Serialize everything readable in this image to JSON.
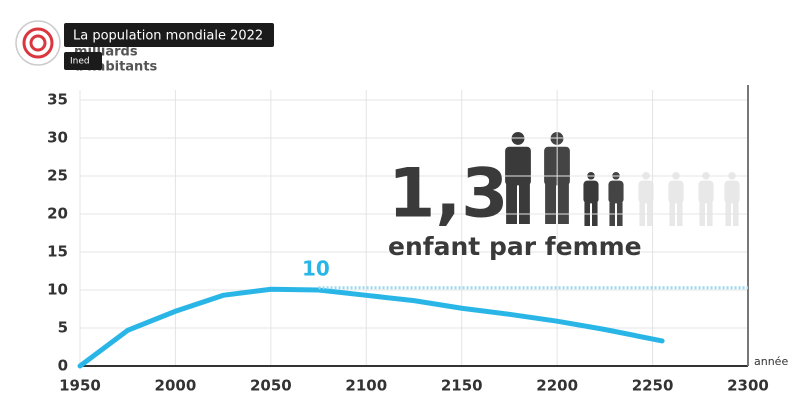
{
  "overlay": {
    "title": "La population mondiale 2022",
    "channel": "Ined"
  },
  "chart_data": {
    "type": "line",
    "ylabel": [
      "milliards",
      "d'habitants"
    ],
    "xlabel": "année",
    "big_text": "1,3",
    "sub_text": "enfant par femme",
    "annotation": "10",
    "xlim": [
      1950,
      2300
    ],
    "ylim": [
      0,
      35
    ],
    "xticks": [
      1950,
      2000,
      2050,
      2100,
      2150,
      2200,
      2250,
      2300
    ],
    "yticks": [
      0,
      5,
      10,
      15,
      20,
      25,
      30,
      35
    ],
    "grid": true,
    "series": [
      {
        "color": "#29b6e6",
        "style": "solid",
        "x": [
          1950,
          1975,
          2000,
          2025,
          2050,
          2075,
          2100,
          2125,
          2150,
          2175,
          2200,
          2225,
          2255
        ],
        "values": [
          0,
          4.7,
          7.2,
          9.3,
          10.1,
          10.0,
          9.3,
          8.6,
          7.6,
          6.8,
          5.9,
          4.8,
          3.3
        ]
      },
      {
        "color": "#9bd8ee",
        "style": "dotted",
        "x": [
          2075,
          2300
        ],
        "values": [
          10.3,
          10.3
        ]
      }
    ]
  }
}
